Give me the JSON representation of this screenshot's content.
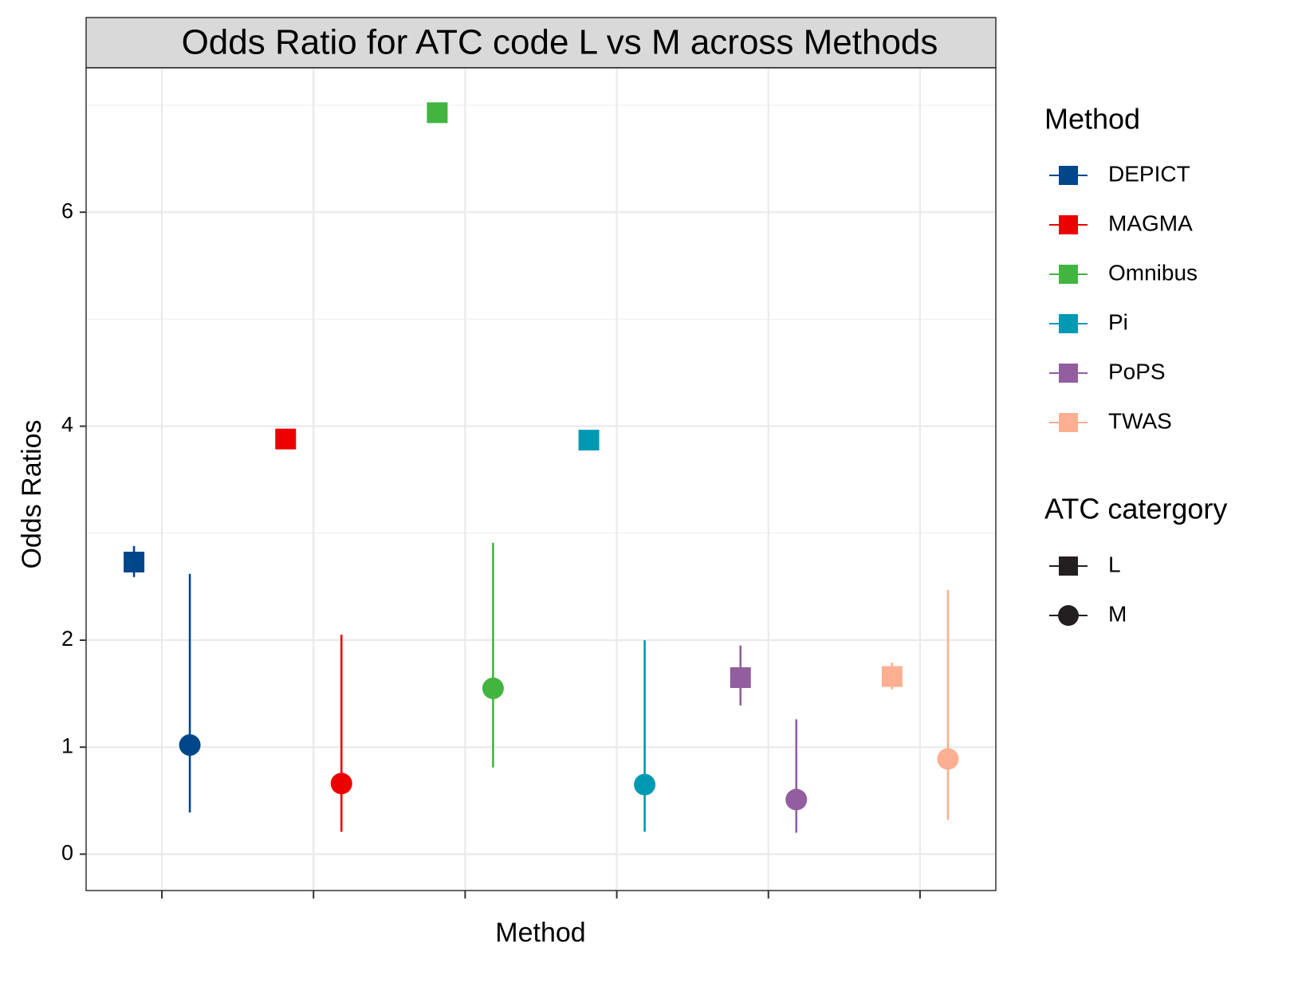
{
  "chart_data": {
    "type": "pointrange",
    "title": "Odds Ratio for ATC code L vs M across Methods",
    "x_label": "Method",
    "y_label": "Odds Ratios",
    "categories": [
      null,
      null,
      null,
      null,
      null,
      null
    ],
    "methods": {
      "title": "Method",
      "names": [
        "DEPICT",
        "MAGMA",
        "Omnibus",
        "Pi",
        "PoPS",
        "TWAS"
      ],
      "colors": [
        "#00468b",
        "#ed0000",
        "#42b540",
        "#0099b4",
        "#925e9f",
        "#fdaf91"
      ]
    },
    "series_legend_title": "ATC catergory",
    "series": [
      {
        "name": "L",
        "shape": "square",
        "color": "#231f20",
        "values": [
          2.73,
          3.88,
          6.93,
          3.87,
          1.65,
          1.66
        ],
        "lower": [
          2.59,
          null,
          null,
          null,
          1.39,
          1.54
        ],
        "upper": [
          2.88,
          null,
          null,
          null,
          1.95,
          1.79
        ]
      },
      {
        "name": "M",
        "shape": "circle",
        "color": "#231f20",
        "values": [
          1.02,
          0.66,
          1.55,
          0.65,
          0.51,
          0.89
        ],
        "lower": [
          0.39,
          0.21,
          0.81,
          0.21,
          0.2,
          0.32
        ],
        "upper": [
          2.62,
          2.05,
          2.91,
          2.0,
          1.26,
          2.47
        ]
      }
    ],
    "ylim": [
      -0.34,
      7.35
    ],
    "yticks": [
      0,
      1,
      2,
      4,
      6
    ],
    "minor_yticks": [
      3,
      5,
      7
    ],
    "grid": true
  }
}
